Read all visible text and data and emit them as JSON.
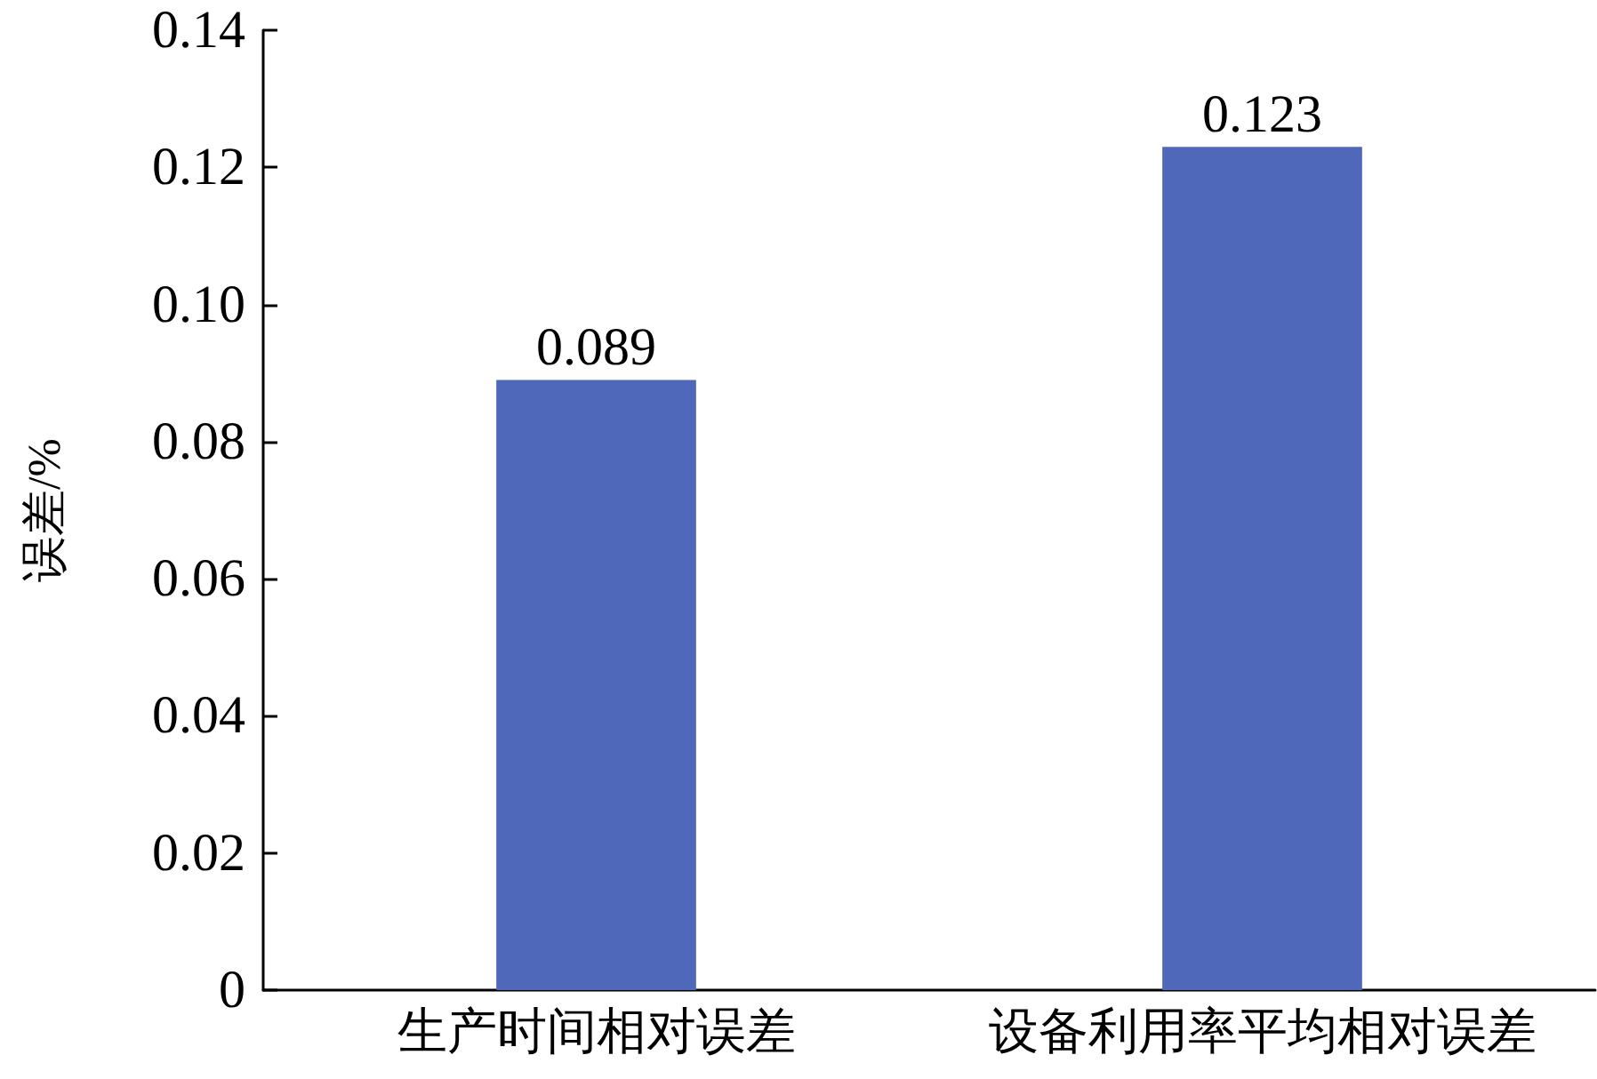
{
  "chart_data": {
    "type": "bar",
    "ylabel": "误差/%",
    "categories": [
      "生产时间相对误差",
      "设备利用率平均相对误差"
    ],
    "values": [
      0.089,
      0.123
    ],
    "color": "#5068b9",
    "ylim": [
      0,
      0.14
    ],
    "yticks": [
      {
        "value": 0,
        "label": "0"
      },
      {
        "value": 0.02,
        "label": "0.02"
      },
      {
        "value": 0.04,
        "label": "0.04"
      },
      {
        "value": 0.06,
        "label": "0.06"
      },
      {
        "value": 0.08,
        "label": "0.08"
      },
      {
        "value": 0.1,
        "label": "0.10"
      },
      {
        "value": 0.12,
        "label": "0.12"
      },
      {
        "value": 0.14,
        "label": "0.14"
      }
    ],
    "data_labels": true,
    "grid": false
  }
}
